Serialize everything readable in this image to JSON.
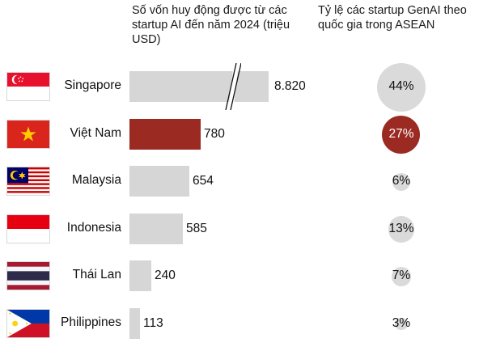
{
  "headers": {
    "volume_title": "Số vốn huy động được từ các startup AI đến năm 2024 (triệu USD)",
    "share_title": "Tỷ lệ các startup GenAI theo quốc gia trong ASEAN"
  },
  "colors": {
    "bar": "#d6d6d6",
    "highlight": "#9b2a22",
    "circle": "#dadada"
  },
  "chart_data": {
    "type": "bar",
    "orientation": "horizontal",
    "title": "",
    "categories": [
      "Singapore",
      "Việt Nam",
      "Malaysia",
      "Indonesia",
      "Thái Lan",
      "Philippines"
    ],
    "series": [
      {
        "name": "Số vốn huy động được từ các startup AI đến năm 2024 (triệu USD)",
        "values": [
          8820,
          780,
          654,
          585,
          240,
          113
        ],
        "labels": [
          "8.820",
          "780",
          "654",
          "585",
          "240",
          "113"
        ]
      },
      {
        "name": "Tỷ lệ các startup GenAI theo quốc gia trong ASEAN",
        "values": [
          44,
          27,
          6,
          13,
          7,
          3
        ],
        "labels": [
          "44%",
          "27%",
          "6%",
          "13%",
          "7%",
          "3%"
        ]
      }
    ],
    "highlight_category": "Việt Nam",
    "broken_axis_category": "Singapore",
    "grid": false,
    "legend": "none"
  },
  "flags": [
    "singapore-flag-icon",
    "vietnam-flag-icon",
    "malaysia-flag-icon",
    "indonesia-flag-icon",
    "thailand-flag-icon",
    "philippines-flag-icon"
  ]
}
